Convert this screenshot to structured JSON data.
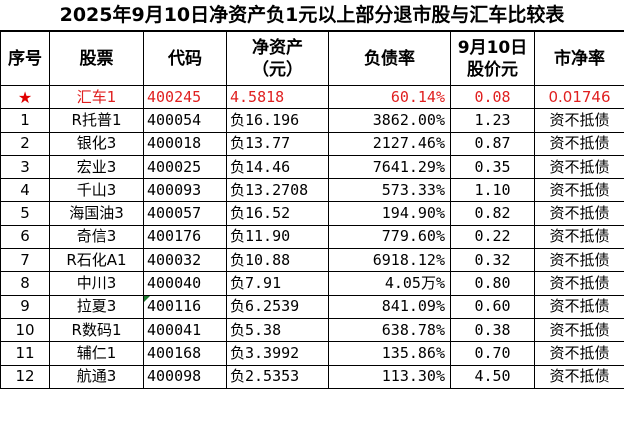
{
  "title": "2025年9月10日净资产负1元以上部分退市股与汇车比较表",
  "headers": {
    "seq": "序号",
    "name": "股票",
    "code": "代码",
    "nav_line1": "净资产",
    "nav_line2": "（元）",
    "debt": "负债率",
    "price_line1": "9月10日",
    "price_line2": "股价元",
    "pb": "市净率"
  },
  "rows": [
    {
      "seq": "★",
      "name": "汇车1",
      "code": "400245",
      "nav": "4.5818",
      "debt": "60.14%",
      "price": "0.08",
      "pb": "0.01746"
    },
    {
      "seq": "1",
      "name": "R托普1",
      "code": "400054",
      "nav": "负16.196",
      "debt": "3862.00%",
      "price": "1.23",
      "pb": "资不抵债"
    },
    {
      "seq": "2",
      "name": "银化3",
      "code": "400018",
      "nav": "负13.77",
      "debt": "2127.46%",
      "price": "0.87",
      "pb": "资不抵债"
    },
    {
      "seq": "3",
      "name": "宏业3",
      "code": "400025",
      "nav": "负14.46",
      "debt": "7641.29%",
      "price": "0.35",
      "pb": "资不抵债"
    },
    {
      "seq": "4",
      "name": "千山3",
      "code": "400093",
      "nav": "负13.2708",
      "debt": "573.33%",
      "price": "1.10",
      "pb": "资不抵债"
    },
    {
      "seq": "5",
      "name": "海国油3",
      "code": "400057",
      "nav": "负16.52",
      "debt": "194.90%",
      "price": "0.82",
      "pb": "资不抵债"
    },
    {
      "seq": "6",
      "name": "奇信3",
      "code": "400176",
      "nav": "负11.90",
      "debt": "779.60%",
      "price": "0.22",
      "pb": "资不抵债"
    },
    {
      "seq": "7",
      "name": "R石化A1",
      "code": "400032",
      "nav": "负10.88",
      "debt": "6918.12%",
      "price": "0.32",
      "pb": "资不抵债"
    },
    {
      "seq": "8",
      "name": "中川3",
      "code": "400040",
      "nav": "负7.91",
      "debt": "4.05万%",
      "price": "0.80",
      "pb": "资不抵债"
    },
    {
      "seq": "9",
      "name": "拉夏3",
      "code": "400116",
      "nav": "负6.2539",
      "debt": "841.09%",
      "price": "0.60",
      "pb": "资不抵债"
    },
    {
      "seq": "10",
      "name": "R数码1",
      "code": "400041",
      "nav": "负5.38",
      "debt": "638.78%",
      "price": "0.38",
      "pb": "资不抵债"
    },
    {
      "seq": "11",
      "name": "辅仁1",
      "code": "400168",
      "nav": "负3.3992",
      "debt": "135.86%",
      "price": "0.70",
      "pb": "资不抵债"
    },
    {
      "seq": "12",
      "name": "航通3",
      "code": "400098",
      "nav": "负2.5353",
      "debt": "113.30%",
      "price": "4.50",
      "pb": "资不抵债"
    }
  ],
  "colors": {
    "highlight_text": "#e02020",
    "star": "#e00000",
    "cell_flag": "#1e7a30",
    "border": "#000000"
  }
}
